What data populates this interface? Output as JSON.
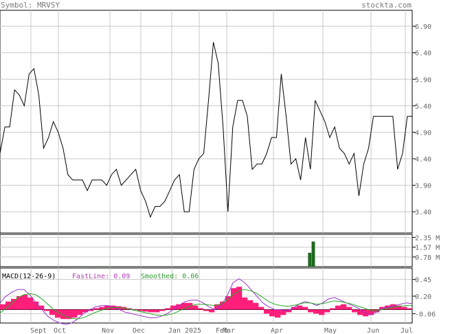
{
  "header": {
    "symbol": "Symbol: MRVSY",
    "site": "stockta.com"
  },
  "colors": {
    "price": "#000000",
    "grid": "#c8c8c8",
    "volume": "#1a6e1a",
    "histogram": "#ff1f7a",
    "fast": "#9933cc",
    "smoothed": "#22aa22",
    "macd_label": "#000000",
    "fast_label": "#b03cb0",
    "smooth_label": "#2f9a2f"
  },
  "chart_data": [
    {
      "type": "line",
      "name": "price",
      "ylim": [
        3.0,
        7.2
      ],
      "yticks": [
        "6.90",
        "6.40",
        "5.90",
        "5.40",
        "4.90",
        "4.40",
        "3.90",
        "3.40"
      ],
      "y": [
        4.5,
        5.0,
        5.0,
        5.7,
        5.6,
        5.4,
        6.0,
        6.1,
        5.6,
        4.6,
        4.8,
        5.1,
        4.9,
        4.6,
        4.1,
        4.0,
        4.0,
        4.0,
        3.8,
        4.0,
        4.0,
        4.0,
        3.9,
        4.1,
        4.2,
        3.9,
        4.0,
        4.1,
        4.2,
        3.8,
        3.6,
        3.3,
        3.5,
        3.5,
        3.6,
        3.8,
        4.0,
        4.1,
        3.4,
        3.4,
        4.2,
        4.4,
        4.5,
        5.5,
        6.6,
        6.2,
        5.0,
        3.4,
        5.0,
        5.5,
        5.5,
        5.2,
        4.2,
        4.3,
        4.3,
        4.5,
        4.8,
        4.8,
        6.0,
        5.2,
        4.3,
        4.4,
        4.0,
        4.8,
        4.2,
        5.5,
        5.3,
        5.1,
        4.8,
        5.0,
        4.6,
        4.5,
        4.3,
        4.5,
        3.7,
        4.3,
        4.6,
        5.2,
        5.2,
        5.2,
        5.2,
        5.2,
        4.2,
        4.5,
        5.2,
        5.2
      ]
    },
    {
      "type": "bar",
      "name": "volume",
      "ylim": [
        0,
        2.6
      ],
      "yticks": [
        "2.35 M",
        "1.57 M",
        "0.78 M"
      ],
      "y": [
        0,
        0,
        0,
        0,
        0,
        0,
        0,
        0,
        0,
        0,
        0,
        0,
        0,
        0,
        0,
        0,
        0,
        0,
        0,
        0,
        0,
        0,
        0.02,
        0,
        0,
        0,
        0,
        0,
        0.02,
        0.02,
        0,
        0,
        0,
        0,
        0,
        0,
        0,
        0,
        0,
        0,
        0,
        0,
        0,
        0,
        0,
        0,
        0,
        0,
        0,
        0,
        0,
        0,
        0,
        0,
        0,
        0,
        0,
        0,
        0,
        0,
        0,
        0,
        0,
        0,
        0,
        0,
        0,
        0,
        0,
        0,
        0,
        0,
        0,
        0,
        0,
        0,
        0,
        0,
        0,
        0,
        0,
        0,
        0,
        0,
        0,
        0,
        1.1,
        2.0,
        0,
        0,
        0,
        0,
        0,
        0,
        0,
        0,
        0,
        0,
        0,
        0,
        0,
        0,
        0,
        0,
        0,
        0,
        0,
        0,
        0,
        0,
        0,
        0,
        0,
        0,
        0
      ]
    },
    {
      "type": "line",
      "name": "MACD",
      "title": "MACD(12-26-9)",
      "fast_label": "FastLine: 0.09",
      "smoothed_label": "Smoothed: 0.06",
      "ylim": [
        -0.2,
        0.62
      ],
      "yticks": [
        "0.45",
        "0.20",
        "-0.06"
      ],
      "histogram": [
        0.08,
        0.12,
        0.16,
        0.2,
        0.22,
        0.18,
        0.12,
        0.06,
        -0.02,
        -0.08,
        -0.12,
        -0.14,
        -0.14,
        -0.12,
        -0.08,
        -0.04,
        -0.02,
        0.02,
        0.04,
        0.06,
        0.06,
        0.05,
        0.04,
        0.02,
        0.0,
        -0.02,
        -0.03,
        -0.04,
        -0.04,
        -0.02,
        0.02,
        0.06,
        0.08,
        0.1,
        0.1,
        0.06,
        0.02,
        -0.02,
        -0.04,
        0.08,
        0.12,
        0.2,
        0.32,
        0.34,
        0.18,
        0.14,
        0.1,
        0.04,
        -0.06,
        -0.1,
        -0.12,
        -0.08,
        -0.04,
        0.04,
        0.06,
        0.04,
        -0.04,
        -0.06,
        -0.08,
        -0.04,
        0.02,
        0.06,
        0.08,
        0.04,
        -0.04,
        -0.08,
        -0.1,
        -0.08,
        -0.04,
        0.04,
        0.06,
        0.08,
        0.06,
        0.04,
        0.02
      ],
      "fast": [
        0.1,
        0.2,
        0.26,
        0.3,
        0.3,
        0.22,
        0.1,
        0.0,
        -0.1,
        -0.16,
        -0.2,
        -0.22,
        -0.2,
        -0.14,
        -0.06,
        0.0,
        0.04,
        0.06,
        0.06,
        0.04,
        0.0,
        -0.04,
        -0.06,
        -0.08,
        -0.1,
        -0.12,
        -0.12,
        -0.1,
        -0.06,
        0.0,
        0.06,
        0.12,
        0.14,
        0.14,
        0.1,
        0.04,
        0.0,
        0.06,
        0.2,
        0.4,
        0.46,
        0.4,
        0.3,
        0.2,
        0.1,
        0.04,
        0.0,
        0.0,
        -0.02,
        0.02,
        0.08,
        0.12,
        0.1,
        0.06,
        0.1,
        0.16,
        0.18,
        0.14,
        0.1,
        0.06,
        0.02,
        -0.04,
        -0.08,
        -0.04,
        0.02,
        0.04,
        0.06,
        0.08,
        0.1,
        0.09
      ],
      "smoothed": [
        -0.05,
        0.02,
        0.1,
        0.18,
        0.22,
        0.24,
        0.22,
        0.16,
        0.08,
        0.0,
        -0.06,
        -0.1,
        -0.13,
        -0.14,
        -0.12,
        -0.08,
        -0.04,
        -0.01,
        0.02,
        0.03,
        0.03,
        0.02,
        0.0,
        -0.02,
        -0.04,
        -0.06,
        -0.08,
        -0.09,
        -0.08,
        -0.06,
        -0.02,
        0.02,
        0.06,
        0.08,
        0.08,
        0.07,
        0.06,
        0.08,
        0.14,
        0.22,
        0.28,
        0.3,
        0.28,
        0.24,
        0.18,
        0.12,
        0.08,
        0.06,
        0.05,
        0.06,
        0.08,
        0.1,
        0.1,
        0.08,
        0.09,
        0.11,
        0.13,
        0.12,
        0.1,
        0.08,
        0.05,
        0.02,
        -0.01,
        -0.02,
        0.0,
        0.02,
        0.04,
        0.05,
        0.06,
        0.06
      ]
    }
  ],
  "x_labels": [
    "Sept",
    "Oct",
    "Nov",
    "Dec",
    "Jan 2025",
    "Feb",
    "Mar",
    "Apr",
    "May",
    "Jun",
    "Jul"
  ]
}
